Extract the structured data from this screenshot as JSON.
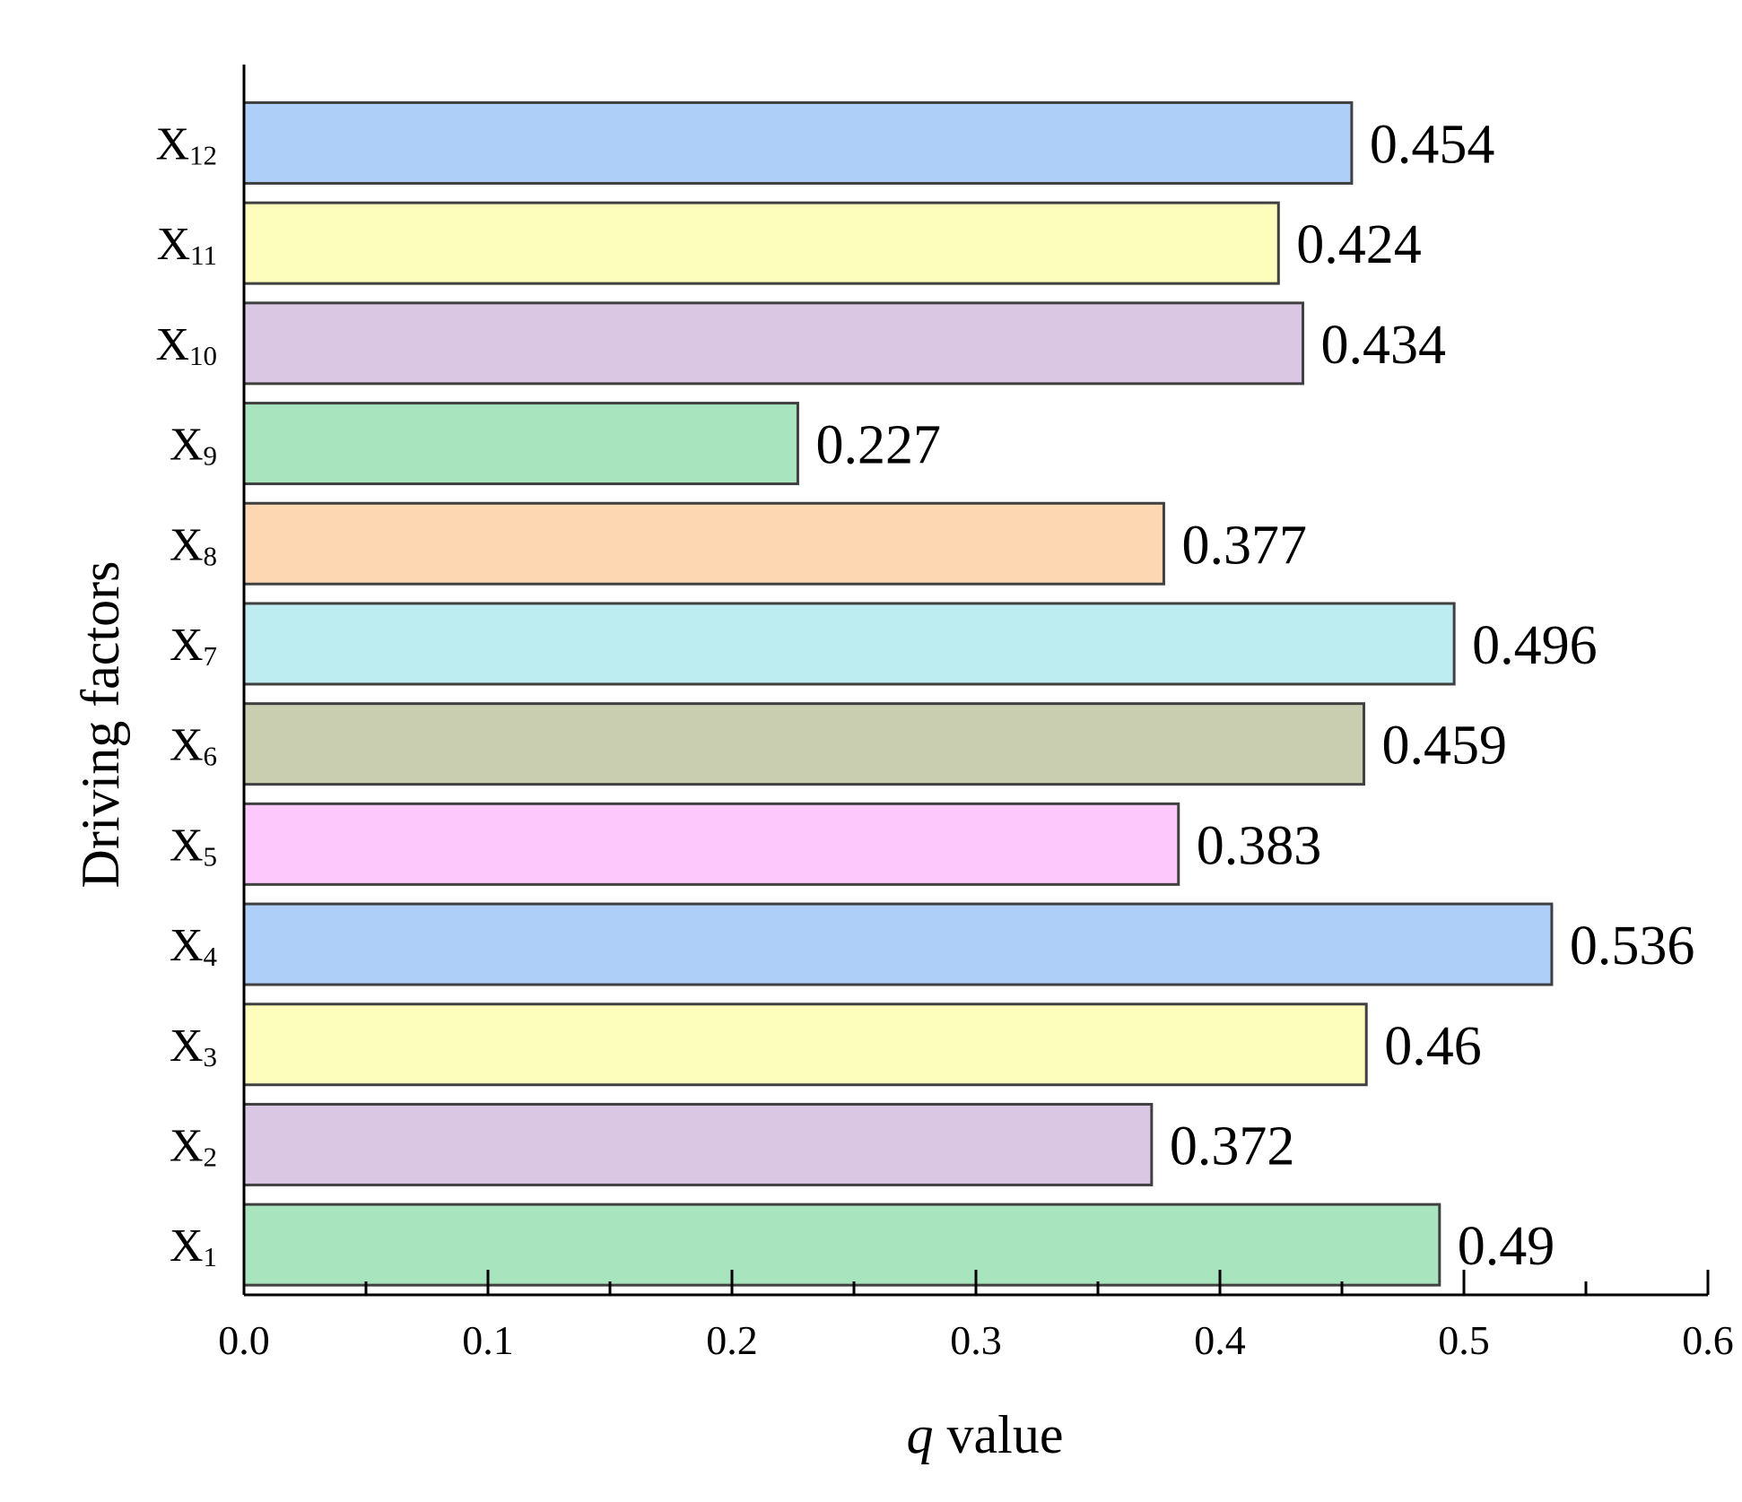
{
  "chart_data": {
    "type": "bar",
    "orientation": "horizontal",
    "categories": [
      {
        "main": "X",
        "sub": "1"
      },
      {
        "main": "X",
        "sub": "2"
      },
      {
        "main": "X",
        "sub": "3"
      },
      {
        "main": "X",
        "sub": "4"
      },
      {
        "main": "X",
        "sub": "5"
      },
      {
        "main": "X",
        "sub": "6"
      },
      {
        "main": "X",
        "sub": "7"
      },
      {
        "main": "X",
        "sub": "8"
      },
      {
        "main": "X",
        "sub": "9"
      },
      {
        "main": "X",
        "sub": "10"
      },
      {
        "main": "X",
        "sub": "11"
      },
      {
        "main": "X",
        "sub": "12"
      }
    ],
    "values": [
      0.49,
      0.372,
      0.46,
      0.536,
      0.383,
      0.459,
      0.496,
      0.377,
      0.227,
      0.434,
      0.424,
      0.454
    ],
    "value_labels": [
      "0.49",
      "0.372",
      "0.46",
      "0.536",
      "0.383",
      "0.459",
      "0.496",
      "0.377",
      "0.227",
      "0.434",
      "0.424",
      "0.454"
    ],
    "colors": [
      "#a8e4bd",
      "#d9c7e3",
      "#fdfdbc",
      "#aecff8",
      "#fdc8fb",
      "#c9ceb1",
      "#bdecf1",
      "#fdd7b1",
      "#a8e4bd",
      "#d9c7e3",
      "#fdfdbc",
      "#aecff8"
    ],
    "bar_stroke": "#404040",
    "xlim": [
      0.0,
      0.6
    ],
    "x_ticks": [
      "0.0",
      "0.1",
      "0.2",
      "0.3",
      "0.4",
      "0.5",
      "0.6"
    ],
    "x_tick_values": [
      0.0,
      0.1,
      0.2,
      0.3,
      0.4,
      0.5,
      0.6
    ],
    "x_minor_tick_values": [
      0.05,
      0.15,
      0.25,
      0.35,
      0.45,
      0.55
    ],
    "xlabel_italic": "q",
    "xlabel_rest": " value",
    "ylabel": "Driving factors",
    "title": "",
    "grid": false,
    "legend": "none"
  }
}
